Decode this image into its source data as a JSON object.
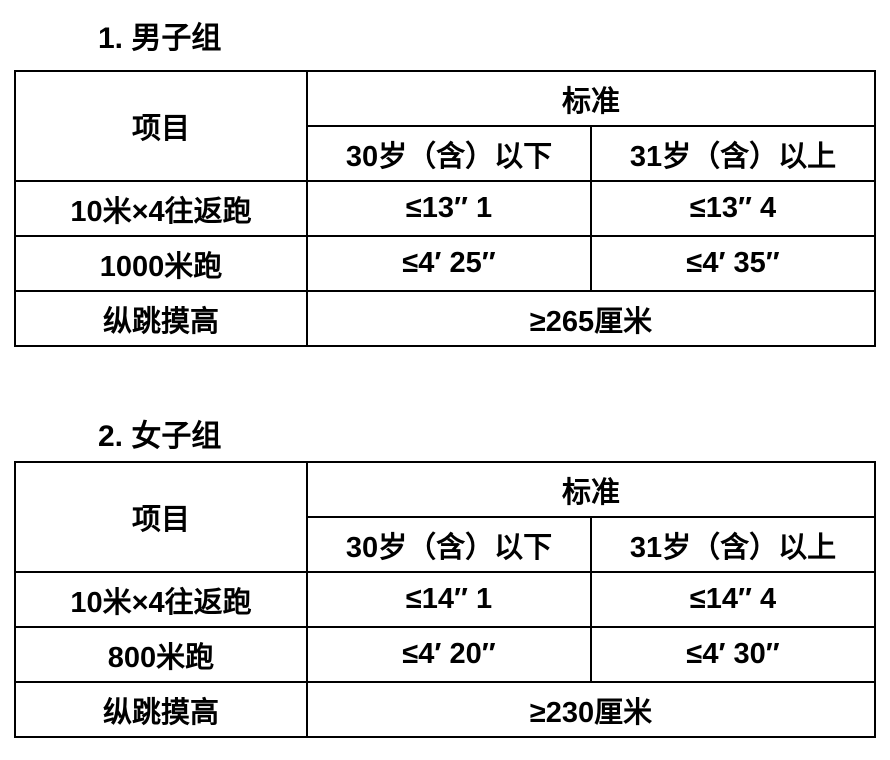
{
  "page": {
    "background_color": "#ffffff",
    "text_color": "#000000",
    "border_color": "#000000"
  },
  "tables": [
    {
      "title": "1. 男子组",
      "header": {
        "item_label": "项目",
        "standard_label": "标准",
        "age_columns": [
          "30岁（含）以下",
          "31岁（含）以上"
        ]
      },
      "rows": [
        {
          "item": "10米×4往返跑",
          "values": [
            "≤13″ 1",
            "≤13″ 4"
          ]
        },
        {
          "item": "1000米跑",
          "values": [
            "≤4′ 25″",
            "≤4′ 35″"
          ]
        },
        {
          "item": "纵跳摸高",
          "values": [
            "≥265厘米"
          ],
          "colspan": 2
        }
      ]
    },
    {
      "title": "2. 女子组",
      "header": {
        "item_label": "项目",
        "standard_label": "标准",
        "age_columns": [
          "30岁（含）以下",
          "31岁（含）以上"
        ]
      },
      "rows": [
        {
          "item": "10米×4往返跑",
          "values": [
            "≤14″ 1",
            "≤14″ 4"
          ]
        },
        {
          "item": "800米跑",
          "values": [
            "≤4′ 20″",
            "≤4′ 30″"
          ]
        },
        {
          "item": "纵跳摸高",
          "values": [
            "≥230厘米"
          ],
          "colspan": 2
        }
      ]
    }
  ]
}
